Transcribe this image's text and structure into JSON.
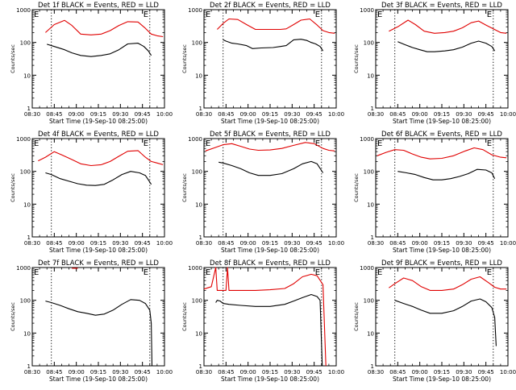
{
  "figure": {
    "x_tick_labels": [
      "08:30",
      "08:45",
      "09:00",
      "09:15",
      "09:30",
      "09:45",
      "10:00"
    ],
    "y_tick_labels": [
      "1",
      "10",
      "100",
      "1000"
    ],
    "ylabel": "Counts/sec",
    "xlabel": "Start Time (19-Sep-10 08:25:00)",
    "marker_left": "E",
    "marker_right": "E",
    "colors": {
      "events": "#000000",
      "lld": "#e00000",
      "axes": "#000000",
      "marker": "#000000"
    }
  },
  "chart_data": [
    {
      "type": "line",
      "title": "Det 1f BLACK = Events, RED = LLD",
      "xlabel": "Start Time (19-Sep-10 08:25:00)",
      "ylabel": "Counts/sec",
      "xlim_min": [
        5,
        95
      ],
      "ylim": [
        1,
        1000
      ],
      "yscale": "log",
      "x_min": [
        5,
        20,
        35,
        50,
        65,
        80,
        95
      ],
      "event_markers_min": [
        18,
        85
      ],
      "series": [
        {
          "name": "LLD",
          "x": [
            14,
            20,
            27,
            32,
            38,
            45,
            52,
            58,
            64,
            70,
            77,
            82,
            86,
            90,
            94
          ],
          "values": [
            200,
            350,
            470,
            330,
            180,
            170,
            180,
            230,
            330,
            430,
            420,
            270,
            180,
            160,
            150
          ]
        },
        {
          "name": "Events",
          "x": [
            15,
            20,
            27,
            32,
            38,
            45,
            52,
            58,
            64,
            70,
            77,
            81,
            84,
            86
          ],
          "values": [
            88,
            75,
            60,
            48,
            40,
            37,
            40,
            45,
            60,
            90,
            95,
            75,
            55,
            40
          ]
        }
      ]
    },
    {
      "type": "line",
      "title": "Det 2f BLACK = Events, RED = LLD",
      "xlabel": "Start Time (19-Sep-10 08:25:00)",
      "ylabel": "Counts/sec",
      "xlim_min": [
        5,
        95
      ],
      "ylim": [
        1,
        1000
      ],
      "yscale": "log",
      "x_min": [
        5,
        20,
        35,
        50,
        65,
        80,
        95
      ],
      "event_markers_min": [
        18,
        85
      ],
      "series": [
        {
          "name": "LLD",
          "x": [
            14,
            18,
            22,
            28,
            34,
            40,
            46,
            52,
            57,
            61,
            66,
            71,
            77,
            82,
            86,
            90,
            94
          ],
          "values": [
            250,
            380,
            520,
            500,
            350,
            250,
            250,
            250,
            250,
            260,
            350,
            480,
            520,
            340,
            230,
            200,
            190
          ]
        },
        {
          "name": "Events",
          "x": [
            18,
            20,
            24,
            28,
            34,
            38,
            44,
            52,
            57,
            61,
            66,
            71,
            75,
            78,
            81,
            84,
            86
          ],
          "values": [
            120,
            110,
            95,
            90,
            80,
            65,
            68,
            70,
            75,
            80,
            120,
            125,
            115,
            100,
            90,
            75,
            55
          ]
        }
      ]
    },
    {
      "type": "line",
      "title": "Det 3f BLACK = Events, RED = LLD",
      "xlabel": "Start Time (19-Sep-10 08:25:00)",
      "ylabel": "Counts/sec",
      "xlim_min": [
        5,
        95
      ],
      "ylim": [
        1,
        1000
      ],
      "yscale": "log",
      "x_min": [
        5,
        20,
        35,
        50,
        65,
        80,
        95
      ],
      "event_markers_min": [
        18,
        85
      ],
      "series": [
        {
          "name": "LLD",
          "x": [
            14,
            20,
            27,
            32,
            38,
            45,
            52,
            58,
            64,
            70,
            75,
            80,
            85,
            90,
            94
          ],
          "values": [
            220,
            300,
            480,
            350,
            220,
            190,
            200,
            220,
            280,
            400,
            450,
            340,
            260,
            200,
            190
          ]
        },
        {
          "name": "Events",
          "x": [
            20,
            25,
            30,
            35,
            40,
            45,
            52,
            58,
            64,
            70,
            75,
            80,
            84,
            86
          ],
          "values": [
            105,
            85,
            70,
            60,
            52,
            52,
            55,
            60,
            72,
            95,
            110,
            95,
            75,
            55
          ]
        }
      ]
    },
    {
      "type": "line",
      "title": "Det 4f BLACK = Events, RED = LLD",
      "xlabel": "Start Time (19-Sep-10 08:25:00)",
      "ylabel": "Counts/sec",
      "xlim_min": [
        5,
        95
      ],
      "ylim": [
        1,
        1000
      ],
      "yscale": "log",
      "x_min": [
        5,
        20,
        35,
        50,
        65,
        80,
        95
      ],
      "event_markers_min": [
        18,
        85
      ],
      "series": [
        {
          "name": "LLD",
          "x": [
            9,
            14,
            20,
            25,
            32,
            38,
            45,
            52,
            58,
            64,
            70,
            77,
            82,
            86,
            90,
            94
          ],
          "values": [
            210,
            270,
            400,
            320,
            230,
            170,
            150,
            160,
            200,
            290,
            410,
            430,
            270,
            200,
            180,
            160
          ]
        },
        {
          "name": "Events",
          "x": [
            14,
            18,
            24,
            30,
            36,
            42,
            48,
            54,
            60,
            66,
            72,
            78,
            82,
            84,
            86
          ],
          "values": [
            90,
            80,
            60,
            50,
            42,
            38,
            37,
            40,
            55,
            80,
            100,
            90,
            75,
            55,
            40
          ]
        }
      ]
    },
    {
      "type": "line",
      "title": "Det 5f BLACK = Events, RED = LLD",
      "xlabel": "Start Time (19-Sep-10 08:25:00)",
      "ylabel": "Counts/sec",
      "xlim_min": [
        5,
        95
      ],
      "ylim": [
        1,
        1000
      ],
      "yscale": "log",
      "x_min": [
        5,
        20,
        35,
        50,
        65,
        80,
        95
      ],
      "event_markers_min": [
        18,
        85
      ],
      "series": [
        {
          "name": "LLD",
          "x": [
            6,
            12,
            18,
            24,
            30,
            36,
            42,
            50,
            58,
            66,
            74,
            80,
            86,
            90,
            94
          ],
          "values": [
            420,
            520,
            650,
            700,
            580,
            480,
            440,
            450,
            500,
            620,
            760,
            700,
            500,
            440,
            420
          ]
        },
        {
          "name": "Events",
          "x": [
            15,
            18,
            24,
            30,
            36,
            42,
            50,
            58,
            66,
            72,
            78,
            82,
            86
          ],
          "values": [
            190,
            180,
            150,
            120,
            90,
            75,
            75,
            85,
            120,
            170,
            200,
            170,
            90
          ]
        }
      ]
    },
    {
      "type": "line",
      "title": "Det 6f BLACK = Events, RED = LLD",
      "xlabel": "Start Time (19-Sep-10 08:25:00)",
      "ylabel": "Counts/sec",
      "xlim_min": [
        5,
        95
      ],
      "ylim": [
        1,
        1000
      ],
      "yscale": "log",
      "x_min": [
        5,
        20,
        35,
        50,
        65,
        80,
        95
      ],
      "event_markers_min": [
        18,
        85
      ],
      "series": [
        {
          "name": "LLD",
          "x": [
            6,
            12,
            18,
            24,
            30,
            36,
            42,
            50,
            58,
            66,
            72,
            78,
            84,
            90,
            94
          ],
          "values": [
            300,
            380,
            460,
            440,
            340,
            270,
            240,
            250,
            300,
            420,
            520,
            460,
            320,
            270,
            260
          ]
        },
        {
          "name": "Events",
          "x": [
            20,
            26,
            32,
            38,
            44,
            50,
            56,
            62,
            68,
            74,
            80,
            84,
            86
          ],
          "values": [
            100,
            90,
            80,
            65,
            55,
            55,
            60,
            70,
            85,
            115,
            110,
            90,
            60
          ]
        }
      ]
    },
    {
      "type": "line",
      "title": "Det 7f BLACK = Events, RED = LLD",
      "xlabel": "Start Time (19-Sep-10 08:25:00)",
      "ylabel": "Counts/sec",
      "xlim_min": [
        5,
        95
      ],
      "ylim": [
        1,
        1000
      ],
      "yscale": "log",
      "x_min": [
        5,
        20,
        35,
        50,
        65,
        80,
        95
      ],
      "event_markers_min": [
        18,
        85
      ],
      "series": [
        {
          "name": "LLD",
          "x": [
            32,
            36
          ],
          "values": [
            950,
            950
          ]
        },
        {
          "name": "Events",
          "x": [
            14,
            18,
            24,
            30,
            36,
            42,
            48,
            54,
            60,
            66,
            72,
            78,
            82,
            85,
            86,
            86.5
          ],
          "values": [
            95,
            85,
            70,
            55,
            45,
            40,
            35,
            38,
            50,
            75,
            105,
            100,
            80,
            50,
            20,
            1
          ]
        }
      ]
    },
    {
      "type": "line",
      "title": "Det 8f BLACK = Events, RED = LLD",
      "xlabel": "Start Time (19-Sep-10 08:25:00)",
      "ylabel": "Counts/sec",
      "xlim_min": [
        5,
        95
      ],
      "ylim": [
        1,
        1000
      ],
      "yscale": "log",
      "x_min": [
        5,
        20,
        35,
        50,
        65,
        80,
        95
      ],
      "event_markers_min": [
        18,
        85
      ],
      "series": [
        {
          "name": "LLD",
          "x": [
            5,
            10,
            13,
            14,
            16,
            20,
            21,
            22,
            30,
            40,
            50,
            60,
            66,
            72,
            78,
            82,
            86,
            88
          ],
          "values": [
            220,
            260,
            1000,
            200,
            200,
            200,
            1000,
            200,
            200,
            200,
            210,
            230,
            320,
            520,
            620,
            560,
            300,
            1
          ]
        },
        {
          "name": "Events",
          "x": [
            13,
            14,
            16,
            18,
            22,
            30,
            40,
            50,
            60,
            66,
            72,
            78,
            82,
            84,
            85.5
          ],
          "values": [
            85,
            100,
            95,
            80,
            75,
            70,
            65,
            65,
            75,
            95,
            120,
            150,
            130,
            100,
            1
          ]
        }
      ]
    },
    {
      "type": "line",
      "title": "Det 9f BLACK = Events, RED = LLD",
      "xlabel": "Start Time (19-Sep-10 08:25:00)",
      "ylabel": "Counts/sec",
      "xlim_min": [
        5,
        95
      ],
      "ylim": [
        1,
        1000
      ],
      "yscale": "log",
      "x_min": [
        5,
        20,
        35,
        50,
        65,
        80,
        95
      ],
      "event_markers_min": [
        18,
        85
      ],
      "series": [
        {
          "name": "LLD",
          "x": [
            14,
            18,
            24,
            30,
            36,
            42,
            50,
            58,
            64,
            70,
            76,
            82,
            86,
            90,
            94
          ],
          "values": [
            240,
            320,
            480,
            400,
            260,
            200,
            200,
            220,
            300,
            440,
            520,
            340,
            250,
            220,
            220
          ]
        },
        {
          "name": "Events",
          "x": [
            18,
            24,
            30,
            36,
            42,
            50,
            58,
            64,
            70,
            76,
            80,
            84,
            86,
            87
          ],
          "values": [
            100,
            80,
            65,
            50,
            40,
            40,
            48,
            65,
            95,
            110,
            90,
            60,
            30,
            4
          ]
        }
      ]
    }
  ]
}
